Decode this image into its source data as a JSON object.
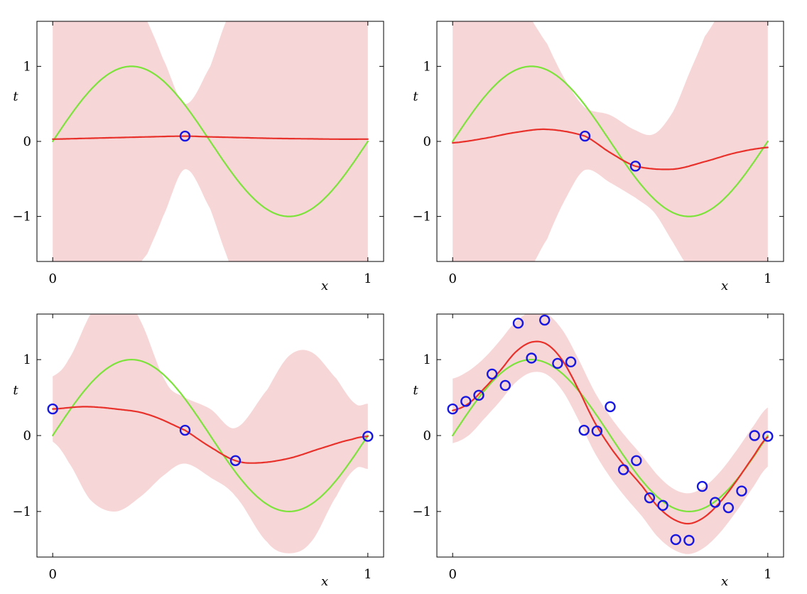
{
  "chart_data": [
    {
      "type": "line",
      "panel": "top-left",
      "xlabel": "x",
      "ylabel": "t",
      "xlim": [
        -0.05,
        1.05
      ],
      "ylim": [
        -1.6,
        1.6
      ],
      "xticks": [
        0,
        1
      ],
      "yticks": [
        -1,
        0,
        1
      ],
      "xtick_labels": [
        "0",
        "1"
      ],
      "ytick_labels": [
        "−1",
        "0",
        "1"
      ],
      "points": [
        {
          "x": 0.42,
          "y": 0.07
        }
      ],
      "true_function": "sin(2*pi*x)",
      "predictive_mean": {
        "x": [
          0,
          0.1,
          0.2,
          0.3,
          0.42,
          0.5,
          0.6,
          0.7,
          0.8,
          0.9,
          1.0
        ],
        "y": [
          0.03,
          0.04,
          0.05,
          0.06,
          0.07,
          0.06,
          0.05,
          0.04,
          0.035,
          0.03,
          0.03
        ]
      },
      "uncertainty_band": {
        "x": [
          0,
          0.1,
          0.2,
          0.3,
          0.35,
          0.42,
          0.5,
          0.55,
          0.6,
          0.7,
          0.8,
          0.9,
          1.0
        ],
        "upper": [
          2.0,
          2.0,
          2.0,
          1.6,
          1.1,
          0.5,
          1.0,
          1.6,
          2.0,
          2.0,
          2.0,
          2.0,
          2.0
        ],
        "lower": [
          -2.0,
          -2.0,
          -2.0,
          -1.5,
          -1.0,
          -0.37,
          -0.9,
          -1.5,
          -2.0,
          -2.0,
          -2.0,
          -2.0,
          -2.0
        ]
      }
    },
    {
      "type": "line",
      "panel": "top-right",
      "xlabel": "x",
      "ylabel": "t",
      "xlim": [
        -0.05,
        1.05
      ],
      "ylim": [
        -1.6,
        1.6
      ],
      "xticks": [
        0,
        1
      ],
      "yticks": [
        -1,
        0,
        1
      ],
      "xtick_labels": [
        "0",
        "1"
      ],
      "ytick_labels": [
        "−1",
        "0",
        "1"
      ],
      "points": [
        {
          "x": 0.42,
          "y": 0.07
        },
        {
          "x": 0.58,
          "y": -0.33
        }
      ],
      "true_function": "sin(2*pi*x)",
      "predictive_mean": {
        "x": [
          0,
          0.1,
          0.2,
          0.3,
          0.42,
          0.5,
          0.58,
          0.7,
          0.8,
          0.9,
          1.0
        ],
        "y": [
          -0.02,
          0.04,
          0.12,
          0.16,
          0.07,
          -0.15,
          -0.33,
          -0.37,
          -0.27,
          -0.15,
          -0.08
        ]
      },
      "uncertainty_band": {
        "x": [
          0,
          0.1,
          0.2,
          0.3,
          0.36,
          0.42,
          0.5,
          0.58,
          0.64,
          0.7,
          0.75,
          0.8,
          0.9,
          1.0
        ],
        "upper": [
          2.0,
          2.0,
          1.9,
          1.3,
          0.8,
          0.45,
          0.35,
          0.15,
          0.1,
          0.4,
          0.9,
          1.4,
          2.0,
          2.0
        ],
        "lower": [
          -2.0,
          -2.0,
          -2.0,
          -1.3,
          -0.75,
          -0.38,
          -0.55,
          -0.75,
          -0.95,
          -1.35,
          -1.7,
          -2.0,
          -2.0,
          -2.0
        ]
      }
    },
    {
      "type": "line",
      "panel": "bottom-left",
      "xlabel": "x",
      "ylabel": "t",
      "xlim": [
        -0.05,
        1.05
      ],
      "ylim": [
        -1.6,
        1.6
      ],
      "xticks": [
        0,
        1
      ],
      "yticks": [
        -1,
        0,
        1
      ],
      "xtick_labels": [
        "0",
        "1"
      ],
      "ytick_labels": [
        "−1",
        "0",
        "1"
      ],
      "points": [
        {
          "x": 0.0,
          "y": 0.35
        },
        {
          "x": 0.42,
          "y": 0.07
        },
        {
          "x": 0.58,
          "y": -0.33
        },
        {
          "x": 1.0,
          "y": -0.01
        }
      ],
      "true_function": "sin(2*pi*x)",
      "predictive_mean": {
        "x": [
          0,
          0.1,
          0.2,
          0.3,
          0.42,
          0.5,
          0.58,
          0.65,
          0.75,
          0.85,
          0.95,
          1.0
        ],
        "y": [
          0.35,
          0.38,
          0.35,
          0.28,
          0.07,
          -0.15,
          -0.33,
          -0.36,
          -0.3,
          -0.17,
          -0.05,
          -0.01
        ]
      },
      "uncertainty_band": {
        "x": [
          0,
          0.05,
          0.12,
          0.2,
          0.28,
          0.36,
          0.42,
          0.5,
          0.58,
          0.68,
          0.75,
          0.82,
          0.9,
          0.96,
          1.0
        ],
        "upper": [
          0.78,
          1.0,
          1.6,
          2.0,
          1.5,
          0.7,
          0.5,
          0.35,
          0.1,
          0.6,
          1.05,
          1.1,
          0.75,
          0.42,
          0.42
        ],
        "lower": [
          -0.08,
          -0.35,
          -0.85,
          -1.0,
          -0.8,
          -0.5,
          -0.37,
          -0.55,
          -0.8,
          -1.4,
          -1.55,
          -1.4,
          -0.8,
          -0.44,
          -0.44
        ]
      }
    },
    {
      "type": "line",
      "panel": "bottom-right",
      "xlabel": "x",
      "ylabel": "t",
      "xlim": [
        -0.05,
        1.05
      ],
      "ylim": [
        -1.6,
        1.6
      ],
      "xticks": [
        0,
        1
      ],
      "yticks": [
        -1,
        0,
        1
      ],
      "xtick_labels": [
        "0",
        "1"
      ],
      "ytick_labels": [
        "−1",
        "0",
        "1"
      ],
      "points": [
        {
          "x": 0.0,
          "y": 0.35
        },
        {
          "x": 0.042,
          "y": 0.45
        },
        {
          "x": 0.083,
          "y": 0.53
        },
        {
          "x": 0.125,
          "y": 0.81
        },
        {
          "x": 0.167,
          "y": 0.66
        },
        {
          "x": 0.208,
          "y": 1.48
        },
        {
          "x": 0.25,
          "y": 1.02
        },
        {
          "x": 0.292,
          "y": 1.52
        },
        {
          "x": 0.333,
          "y": 0.95
        },
        {
          "x": 0.375,
          "y": 0.97
        },
        {
          "x": 0.417,
          "y": 0.07
        },
        {
          "x": 0.458,
          "y": 0.06
        },
        {
          "x": 0.5,
          "y": 0.38
        },
        {
          "x": 0.542,
          "y": -0.45
        },
        {
          "x": 0.583,
          "y": -0.33
        },
        {
          "x": 0.625,
          "y": -0.82
        },
        {
          "x": 0.667,
          "y": -0.92
        },
        {
          "x": 0.708,
          "y": -1.37
        },
        {
          "x": 0.75,
          "y": -1.38
        },
        {
          "x": 0.792,
          "y": -0.67
        },
        {
          "x": 0.833,
          "y": -0.88
        },
        {
          "x": 0.875,
          "y": -0.95
        },
        {
          "x": 0.917,
          "y": -0.73
        },
        {
          "x": 0.958,
          "y": 0.0
        },
        {
          "x": 1.0,
          "y": -0.01
        }
      ],
      "true_function": "sin(2*pi*x)",
      "predictive_mean": {
        "x": [
          0,
          0.05,
          0.1,
          0.15,
          0.2,
          0.25,
          0.3,
          0.35,
          0.4,
          0.45,
          0.5,
          0.55,
          0.6,
          0.65,
          0.7,
          0.75,
          0.8,
          0.85,
          0.9,
          0.95,
          1.0
        ],
        "y": [
          0.33,
          0.42,
          0.62,
          0.85,
          1.1,
          1.23,
          1.2,
          0.98,
          0.6,
          0.18,
          -0.15,
          -0.42,
          -0.66,
          -0.93,
          -1.1,
          -1.16,
          -1.07,
          -0.87,
          -0.6,
          -0.3,
          -0.02
        ]
      },
      "uncertainty_band": {
        "x": [
          0,
          0.05,
          0.1,
          0.15,
          0.2,
          0.25,
          0.3,
          0.35,
          0.4,
          0.45,
          0.5,
          0.55,
          0.6,
          0.65,
          0.7,
          0.75,
          0.8,
          0.85,
          0.9,
          0.95,
          1.0
        ],
        "upper": [
          0.75,
          0.85,
          1.02,
          1.25,
          1.5,
          1.63,
          1.6,
          1.38,
          1.0,
          0.58,
          0.25,
          -0.02,
          -0.26,
          -0.52,
          -0.7,
          -0.76,
          -0.67,
          -0.47,
          -0.2,
          0.1,
          0.37
        ],
        "lower": [
          -0.1,
          0.0,
          0.22,
          0.45,
          0.7,
          0.83,
          0.8,
          0.58,
          0.2,
          -0.22,
          -0.55,
          -0.82,
          -1.06,
          -1.33,
          -1.5,
          -1.56,
          -1.47,
          -1.27,
          -1.0,
          -0.7,
          -0.41
        ]
      }
    }
  ],
  "colors": {
    "band": "#f7d6d7",
    "mean": "#e8312a",
    "true_function": "#7be33a",
    "points": "#1717e0",
    "axes": "#000000"
  }
}
